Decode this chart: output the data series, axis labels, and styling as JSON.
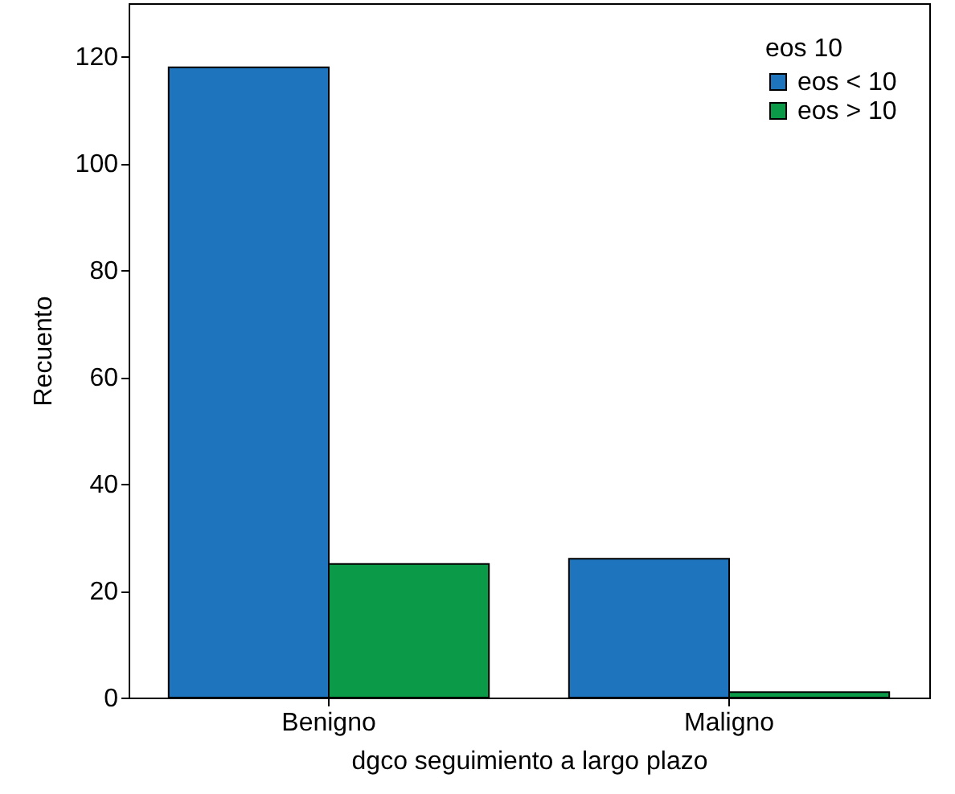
{
  "chart_data": {
    "type": "bar",
    "xlabel": "dgco seguimiento a largo plazo",
    "ylabel": "Recuento",
    "legend_title": "eos 10",
    "legend": "top right",
    "categories": [
      "Benigno",
      "Maligno"
    ],
    "series": [
      {
        "name": "eos < 10",
        "color": "#1f74be",
        "values": [
          118,
          26
        ]
      },
      {
        "name": "eos > 10",
        "color": "#0a9a48",
        "values": [
          25,
          1
        ]
      }
    ],
    "ylim": [
      0,
      130
    ],
    "yticks": [
      0,
      20,
      40,
      60,
      80,
      100,
      120
    ]
  }
}
